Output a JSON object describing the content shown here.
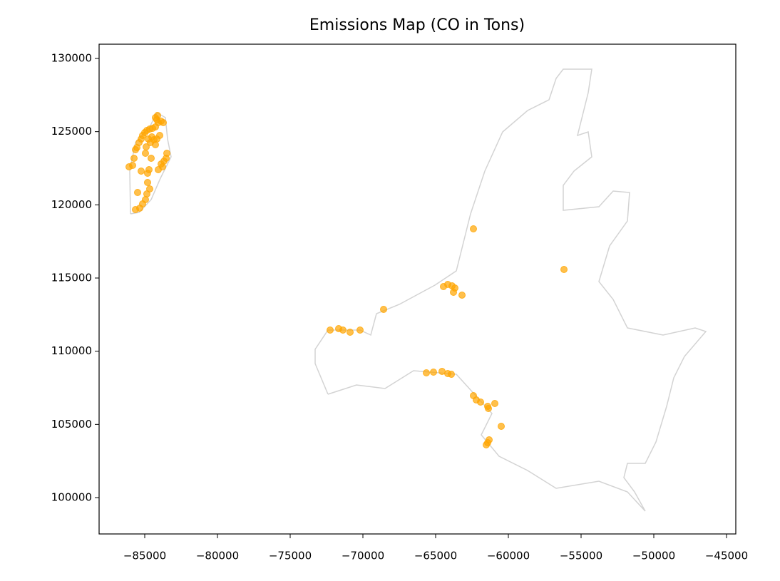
{
  "chart_data": {
    "type": "scatter",
    "title": "Emissions Map (CO in Tons)",
    "color": "#ffa500",
    "xlim": [
      -88137,
      -44363
    ],
    "ylim": [
      97516,
      130974
    ],
    "xticks": [
      {
        "value": -85000,
        "label": "−85000"
      },
      {
        "value": -80000,
        "label": "−80000"
      },
      {
        "value": -75000,
        "label": "−75000"
      },
      {
        "value": -70000,
        "label": "−70000"
      },
      {
        "value": -65000,
        "label": "−65000"
      },
      {
        "value": -60000,
        "label": "−60000"
      },
      {
        "value": -55000,
        "label": "−55000"
      },
      {
        "value": -50000,
        "label": "−50000"
      },
      {
        "value": -45000,
        "label": "−45000"
      }
    ],
    "yticks": [
      100000,
      105000,
      110000,
      115000,
      120000,
      125000,
      130000
    ],
    "x": [
      -86078,
      -85833,
      -85735,
      -85637,
      -85539,
      -85392,
      -85245,
      -85147,
      -85000,
      -84853,
      -84657,
      -84461,
      -84265,
      -84167,
      -84118,
      -84265,
      -84069,
      -83873,
      -83725,
      -84510,
      -84363,
      -84755,
      -84167,
      -83971,
      -84608,
      -84902,
      -84951,
      -84559,
      -85245,
      -84706,
      -84069,
      -83873,
      -83676,
      -83529,
      -83480,
      -83775,
      -84804,
      -84657,
      -84853,
      -84951,
      -85147,
      -85343,
      -85637,
      -85490,
      -84804,
      -84265,
      -62402,
      -56176,
      -64461,
      -64166,
      -63872,
      -63676,
      -63774,
      -63186,
      -68578,
      -72255,
      -71667,
      -71372,
      -70882,
      -70196,
      -65637,
      -65147,
      -64559,
      -64166,
      -63921,
      -62402,
      -62206,
      -61912,
      -61421,
      -60931,
      -61372,
      -60490,
      -61323,
      -61519,
      -61421
    ],
    "y": [
      122598,
      122695,
      123182,
      123766,
      123912,
      124253,
      124497,
      124740,
      124935,
      125081,
      125179,
      125227,
      125325,
      125812,
      126104,
      125958,
      125617,
      125714,
      125617,
      124643,
      124448,
      124497,
      124497,
      124740,
      124253,
      123961,
      123523,
      123182,
      122305,
      122403,
      122403,
      122792,
      122987,
      123182,
      123523,
      122598,
      121526,
      121088,
      120747,
      120357,
      120065,
      119773,
      119676,
      120844,
      122159,
      124107,
      118361,
      115585,
      114416,
      114562,
      114465,
      114319,
      114026,
      113832,
      112858,
      111445,
      111543,
      111445,
      111299,
      111445,
      108523,
      108572,
      108621,
      108475,
      108426,
      106965,
      106673,
      106527,
      106234,
      106429,
      106088,
      104871,
      103945,
      103605,
      103751
    ]
  }
}
